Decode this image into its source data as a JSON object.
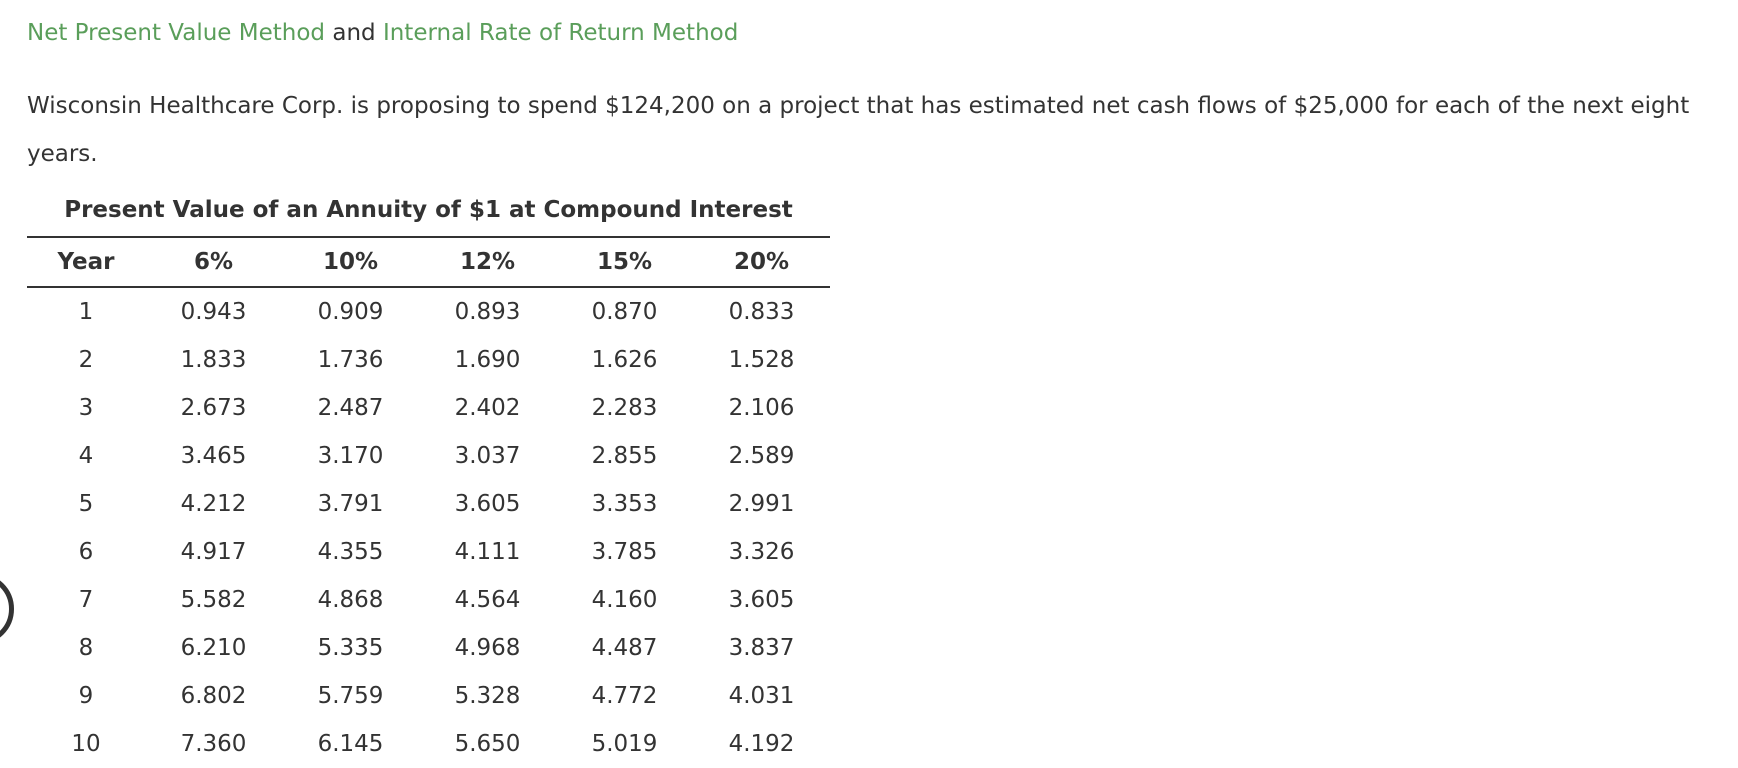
{
  "header": {
    "link1": "Net Present Value Method",
    "conjunction": "and",
    "link2": "Internal Rate of Return Method"
  },
  "paragraph": "Wisconsin Healthcare Corp. is proposing to spend $124,200 on a project that has estimated net cash flows of $25,000 for each of the next eight years.",
  "table": {
    "title": "Present Value of an Annuity of $1 at Compound Interest",
    "columns": [
      "Year",
      "6%",
      "10%",
      "12%",
      "15%",
      "20%"
    ],
    "rows": [
      [
        "1",
        "0.943",
        "0.909",
        "0.893",
        "0.870",
        "0.833"
      ],
      [
        "2",
        "1.833",
        "1.736",
        "1.690",
        "1.626",
        "1.528"
      ],
      [
        "3",
        "2.673",
        "2.487",
        "2.402",
        "2.283",
        "2.106"
      ],
      [
        "4",
        "3.465",
        "3.170",
        "3.037",
        "2.855",
        "2.589"
      ],
      [
        "5",
        "4.212",
        "3.791",
        "3.605",
        "3.353",
        "2.991"
      ],
      [
        "6",
        "4.917",
        "4.355",
        "4.111",
        "3.785",
        "3.326"
      ],
      [
        "7",
        "5.582",
        "4.868",
        "4.564",
        "4.160",
        "3.605"
      ],
      [
        "8",
        "6.210",
        "5.335",
        "4.968",
        "4.487",
        "3.837"
      ],
      [
        "9",
        "6.802",
        "5.759",
        "5.328",
        "4.772",
        "4.031"
      ],
      [
        "10",
        "7.360",
        "6.145",
        "5.650",
        "5.019",
        "4.192"
      ]
    ]
  }
}
